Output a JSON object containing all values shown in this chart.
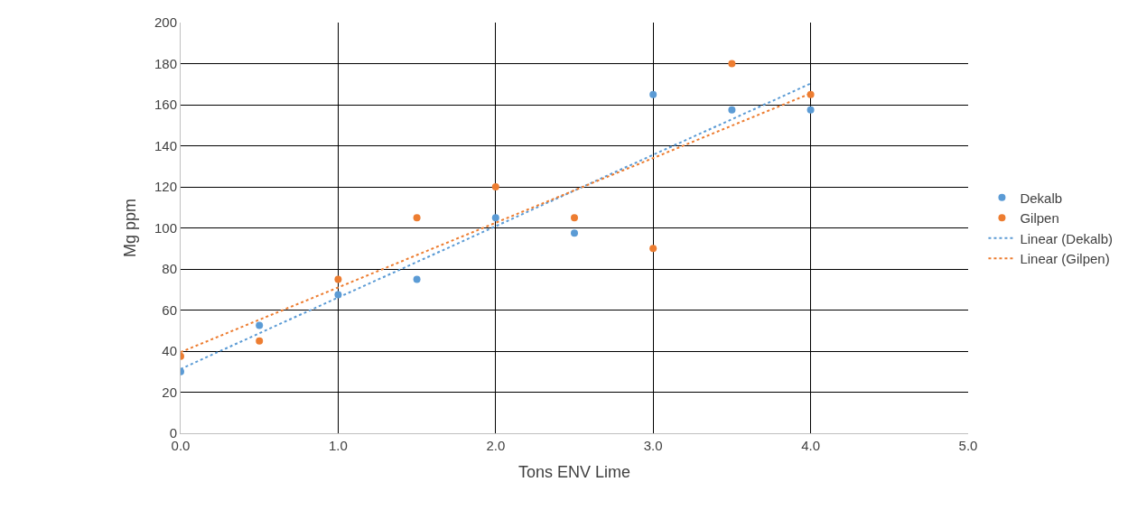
{
  "chart_data": {
    "type": "scatter",
    "xlabel": "Tons ENV Lime",
    "ylabel": "Mg ppm",
    "x": [
      0,
      0.5,
      1,
      1.5,
      2,
      2.5,
      3,
      3.5,
      4
    ],
    "series": [
      {
        "name": "Dekalb",
        "color": "#5b9bd5",
        "values": [
          30,
          52.5,
          67.5,
          75,
          105,
          97.5,
          165,
          157.5,
          157.5
        ],
        "marker": "circle"
      },
      {
        "name": "Gilpen",
        "color": "#ed7d31",
        "values": [
          37.5,
          45,
          75,
          105,
          120,
          105,
          90,
          180,
          165
        ],
        "marker": "circle"
      },
      {
        "name": "Linear (Dekalb)",
        "type": "line",
        "color": "#5b9bd5",
        "values": [
          31.3,
          48.7,
          66.1,
          83.4,
          100.8,
          118.2,
          135.6,
          152.9,
          170.3
        ],
        "line_style": "dotted",
        "marker": "none"
      },
      {
        "name": "Linear (Gilpen)",
        "type": "line",
        "color": "#ed7d31",
        "values": [
          39.5,
          55.3,
          71,
          86.8,
          102.5,
          118.3,
          134,
          149.8,
          165.5
        ],
        "line_style": "dotted",
        "marker": "none"
      }
    ],
    "xlim": [
      0,
      5
    ],
    "xticks": [
      {
        "value": 0,
        "label": "0.0"
      },
      {
        "value": 1,
        "label": "1.0"
      },
      {
        "value": 2,
        "label": "2.0"
      },
      {
        "value": 3,
        "label": "3.0"
      },
      {
        "value": 4,
        "label": "4.0"
      },
      {
        "value": 5,
        "label": "5.0"
      }
    ],
    "ylim": [
      0,
      200
    ],
    "yticks": [
      0,
      20,
      40,
      60,
      80,
      100,
      120,
      140,
      160,
      180,
      200
    ],
    "grid": true,
    "legend": "right"
  }
}
